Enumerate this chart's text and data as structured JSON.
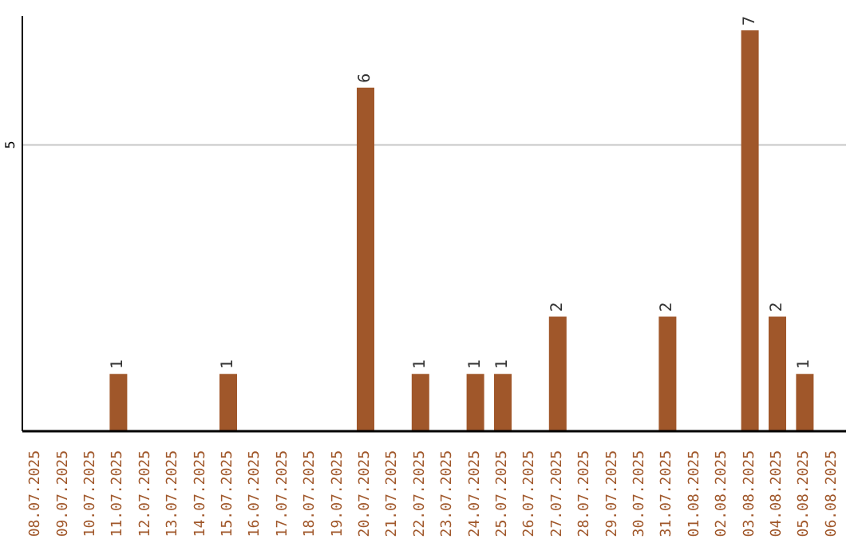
{
  "chart_data": {
    "type": "bar",
    "categories": [
      "08.07.2025",
      "09.07.2025",
      "10.07.2025",
      "11.07.2025",
      "12.07.2025",
      "13.07.2025",
      "14.07.2025",
      "15.07.2025",
      "16.07.2025",
      "17.07.2025",
      "18.07.2025",
      "19.07.2025",
      "20.07.2025",
      "21.07.2025",
      "22.07.2025",
      "23.07.2025",
      "24.07.2025",
      "25.07.2025",
      "26.07.2025",
      "27.07.2025",
      "28.07.2025",
      "29.07.2025",
      "30.07.2025",
      "31.07.2025",
      "01.08.2025",
      "02.08.2025",
      "03.08.2025",
      "04.08.2025",
      "05.08.2025",
      "06.08.2025"
    ],
    "values": [
      0,
      0,
      0,
      1,
      0,
      0,
      0,
      1,
      0,
      0,
      0,
      0,
      6,
      0,
      1,
      0,
      1,
      1,
      0,
      2,
      0,
      0,
      0,
      2,
      0,
      0,
      7,
      2,
      1,
      0
    ],
    "value_labels": [
      null,
      null,
      null,
      "1",
      null,
      null,
      null,
      "1",
      null,
      null,
      null,
      null,
      "6",
      null,
      "1",
      null,
      "1",
      "1",
      null,
      "2",
      null,
      null,
      null,
      "2",
      null,
      null,
      "7",
      "2",
      "1",
      null
    ],
    "color": "#a0572a",
    "ylim": [
      0,
      7.25
    ],
    "yticks": [
      5
    ],
    "grid": "y"
  }
}
